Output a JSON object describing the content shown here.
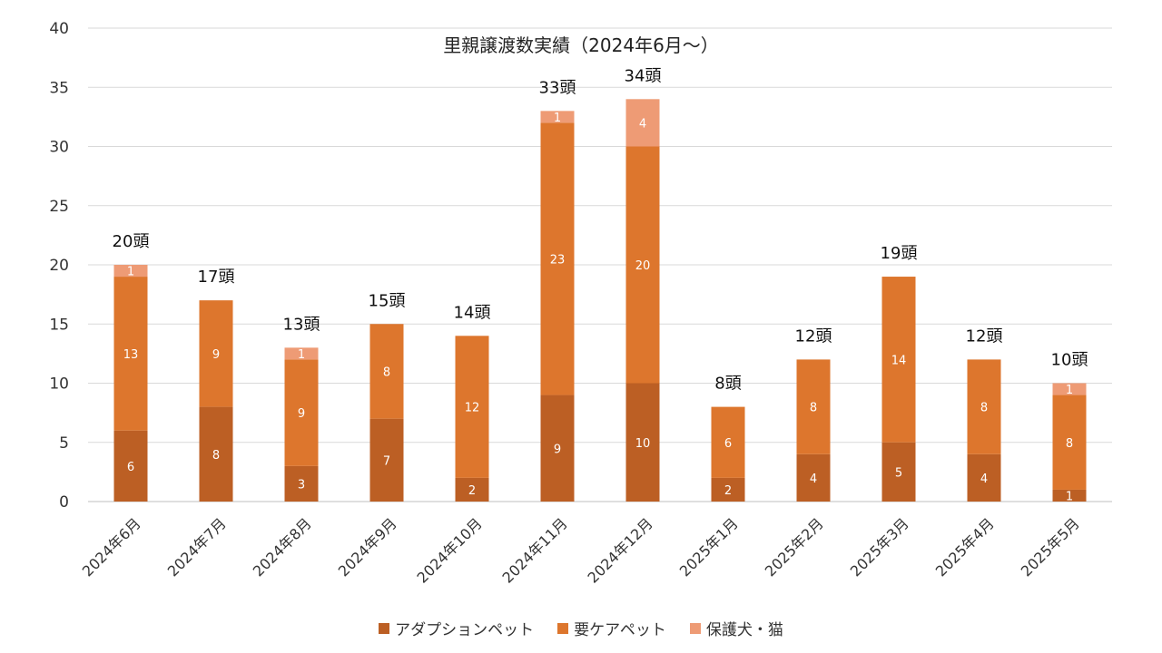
{
  "chart_data": {
    "type": "bar",
    "stacked": true,
    "title": "里親譲渡数実績（2024年6月～）",
    "xlabel": "",
    "ylabel": "",
    "ylim": [
      0,
      40
    ],
    "yticks": [
      0,
      5,
      10,
      15,
      20,
      25,
      30,
      35,
      40
    ],
    "grid": true,
    "legend_position": "bottom",
    "categories": [
      "2024年6月",
      "2024年7月",
      "2024年8月",
      "2024年9月",
      "2024年10月",
      "2024年11月",
      "2024年12月",
      "2025年1月",
      "2025年2月",
      "2025年3月",
      "2025年4月",
      "2025年5月"
    ],
    "series": [
      {
        "name": "アダプションペット",
        "color": "#BC5F24",
        "values": [
          6,
          8,
          3,
          7,
          2,
          9,
          10,
          2,
          4,
          5,
          4,
          1
        ]
      },
      {
        "name": "要ケアペット",
        "color": "#DD762D",
        "values": [
          13,
          9,
          9,
          8,
          12,
          23,
          20,
          6,
          8,
          14,
          8,
          8
        ]
      },
      {
        "name": "保護犬・猫",
        "color": "#EE9B75",
        "values": [
          1,
          0,
          1,
          0,
          0,
          1,
          4,
          0,
          0,
          0,
          0,
          1
        ]
      }
    ],
    "total_labels": [
      "20頭",
      "17頭",
      "13頭",
      "15頭",
      "14頭",
      "33頭",
      "34頭",
      "8頭",
      "12頭",
      "19頭",
      "12頭",
      "10頭"
    ]
  }
}
